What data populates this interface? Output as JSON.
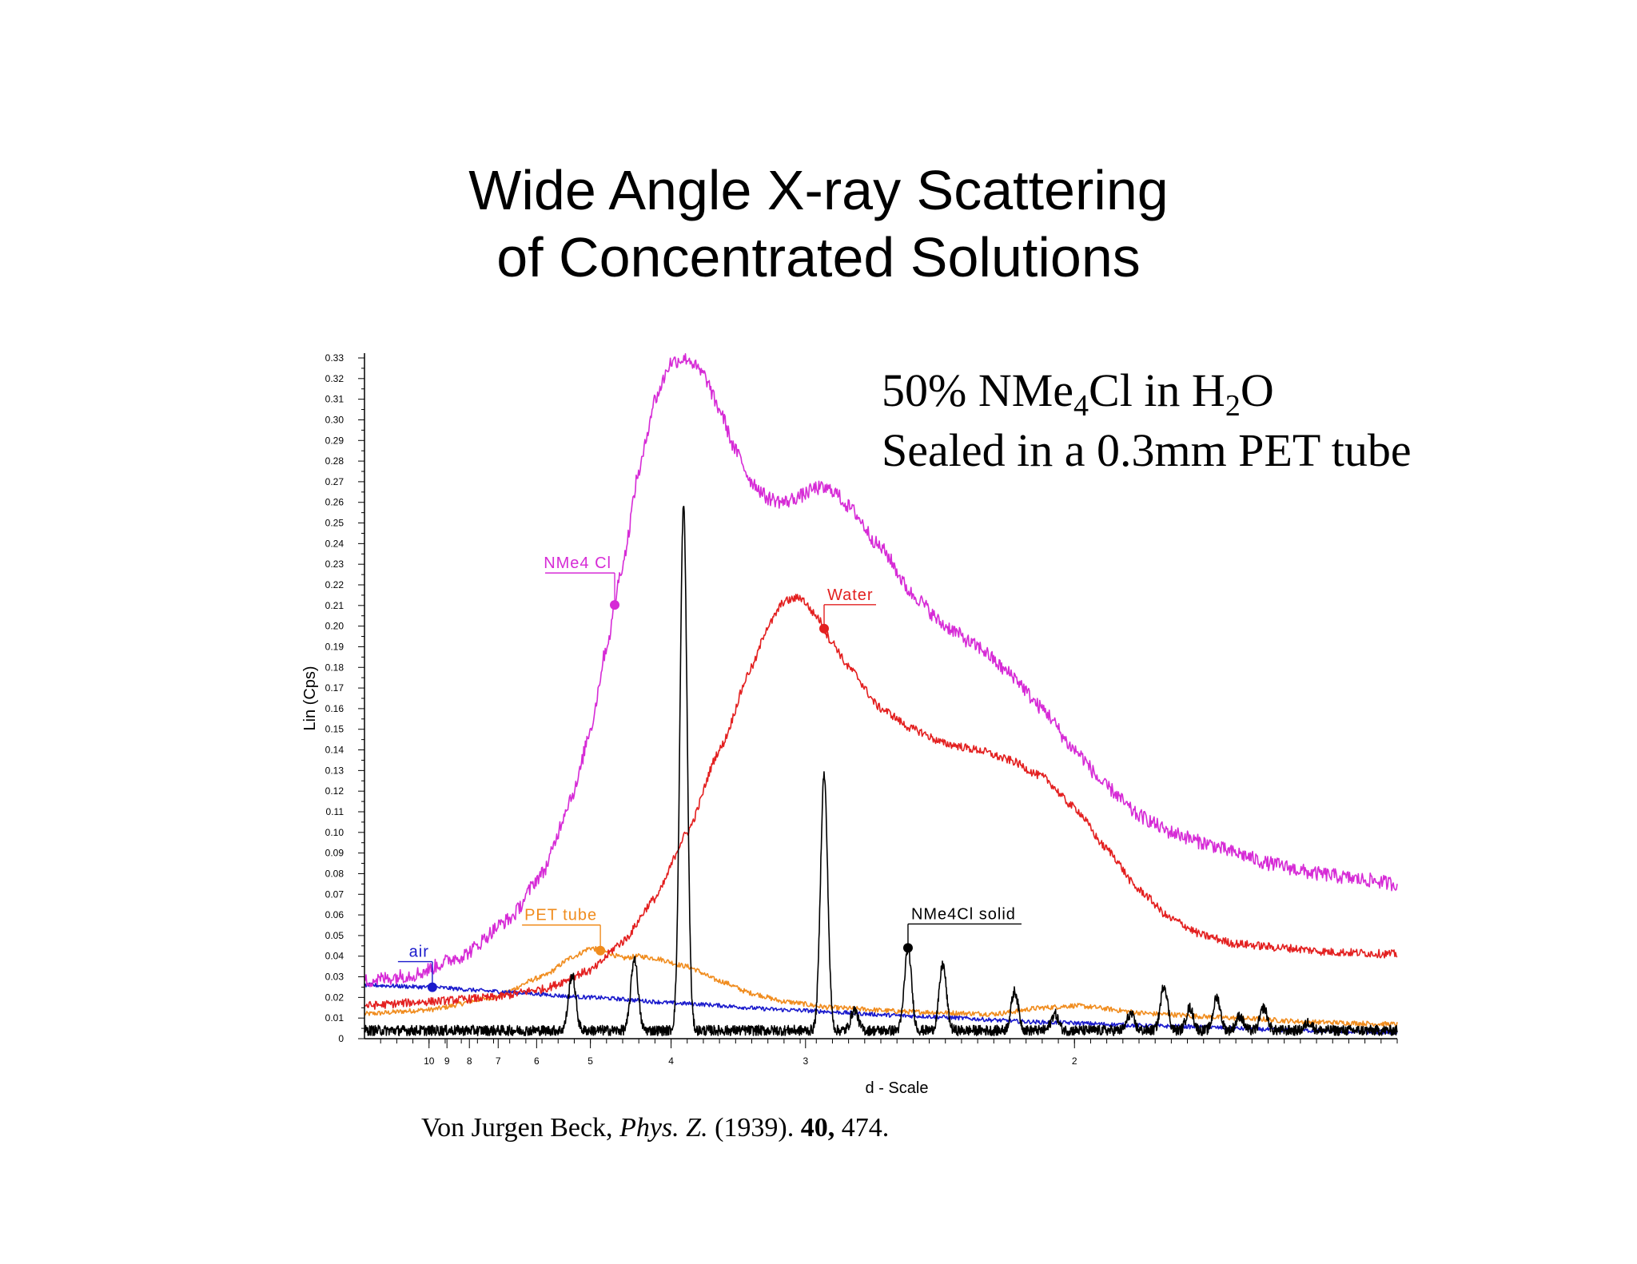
{
  "slide": {
    "title_line1": "Wide Angle X-ray Scattering",
    "title_line2": "of Concentrated Solutions",
    "annotation": {
      "line1_prefix": "50% NMe",
      "line1_sub1": "4",
      "line1_mid": "Cl in H",
      "line1_sub2": "2",
      "line1_suffix": "O",
      "line2": "Sealed in a 0.3mm PET tube"
    },
    "citation": {
      "author": "Von Jurgen Beck, ",
      "journal": "Phys. Z.",
      "year": " (1939). ",
      "volume": "40,",
      "pages": " 474."
    }
  },
  "colors": {
    "nme4cl": "#d62bd6",
    "water": "#e32020",
    "pet": "#f08c1e",
    "air": "#1a1acc",
    "solid": "#000000"
  },
  "chart_data": {
    "type": "line",
    "xlabel": "d - Scale",
    "ylabel": "Lin (Cps)",
    "ylim": [
      0,
      0.33
    ],
    "y_ticks": [
      "0",
      "0.01",
      "0.02",
      "0.03",
      "0.04",
      "0.05",
      "0.06",
      "0.07",
      "0.08",
      "0.09",
      "0.10",
      "0.11",
      "0.12",
      "0.13",
      "0.14",
      "0.15",
      "0.16",
      "0.17",
      "0.18",
      "0.19",
      "0.20",
      "0.21",
      "0.22",
      "0.23",
      "0.24",
      "0.25",
      "0.26",
      "0.27",
      "0.28",
      "0.29",
      "0.30",
      "0.31",
      "0.32",
      "0.33"
    ],
    "x_axis_note": "reciprocal d-spacing; plotted against 1/d in 1/Angstrom",
    "x_range_inv_d": [
      0.06,
      0.7
    ],
    "x_ticks": [
      {
        "label": "10",
        "d": 10
      },
      {
        "label": "9",
        "d": 9
      },
      {
        "label": "8",
        "d": 8
      },
      {
        "label": "7",
        "d": 7
      },
      {
        "label": "6",
        "d": 6
      },
      {
        "label": "5",
        "d": 5
      },
      {
        "label": "4",
        "d": 4
      },
      {
        "label": "3",
        "d": 3
      },
      {
        "label": "2",
        "d": 2
      }
    ],
    "series": [
      {
        "name": "NMe4 Cl",
        "label": "NMe4 Cl",
        "color_key": "nme4cl",
        "noise": 0.0035,
        "label_at_d": 4.65,
        "points": [
          [
            0.06,
            0.028
          ],
          [
            0.09,
            0.031
          ],
          [
            0.12,
            0.04
          ],
          [
            0.15,
            0.058
          ],
          [
            0.17,
            0.08
          ],
          [
            0.19,
            0.12
          ],
          [
            0.2,
            0.15
          ],
          [
            0.21,
            0.19
          ],
          [
            0.22,
            0.23
          ],
          [
            0.23,
            0.275
          ],
          [
            0.24,
            0.31
          ],
          [
            0.25,
            0.328
          ],
          [
            0.26,
            0.33
          ],
          [
            0.27,
            0.322
          ],
          [
            0.28,
            0.305
          ],
          [
            0.29,
            0.285
          ],
          [
            0.3,
            0.27
          ],
          [
            0.31,
            0.262
          ],
          [
            0.32,
            0.26
          ],
          [
            0.33,
            0.263
          ],
          [
            0.34,
            0.267
          ],
          [
            0.35,
            0.266
          ],
          [
            0.36,
            0.258
          ],
          [
            0.38,
            0.238
          ],
          [
            0.4,
            0.215
          ],
          [
            0.42,
            0.2
          ],
          [
            0.44,
            0.19
          ],
          [
            0.46,
            0.177
          ],
          [
            0.48,
            0.16
          ],
          [
            0.5,
            0.14
          ],
          [
            0.52,
            0.122
          ],
          [
            0.54,
            0.108
          ],
          [
            0.56,
            0.1
          ],
          [
            0.58,
            0.095
          ],
          [
            0.6,
            0.09
          ],
          [
            0.62,
            0.085
          ],
          [
            0.65,
            0.08
          ],
          [
            0.68,
            0.077
          ],
          [
            0.7,
            0.075
          ]
        ]
      },
      {
        "name": "Water",
        "label": "Water",
        "color_key": "water",
        "noise": 0.002,
        "label_at_d": 2.9,
        "points": [
          [
            0.06,
            0.016
          ],
          [
            0.1,
            0.018
          ],
          [
            0.14,
            0.02
          ],
          [
            0.17,
            0.024
          ],
          [
            0.2,
            0.033
          ],
          [
            0.22,
            0.047
          ],
          [
            0.24,
            0.068
          ],
          [
            0.26,
            0.1
          ],
          [
            0.28,
            0.14
          ],
          [
            0.3,
            0.18
          ],
          [
            0.31,
            0.2
          ],
          [
            0.32,
            0.212
          ],
          [
            0.33,
            0.214
          ],
          [
            0.34,
            0.205
          ],
          [
            0.35,
            0.192
          ],
          [
            0.36,
            0.18
          ],
          [
            0.38,
            0.16
          ],
          [
            0.4,
            0.15
          ],
          [
            0.42,
            0.143
          ],
          [
            0.44,
            0.14
          ],
          [
            0.46,
            0.135
          ],
          [
            0.48,
            0.127
          ],
          [
            0.5,
            0.112
          ],
          [
            0.52,
            0.092
          ],
          [
            0.54,
            0.072
          ],
          [
            0.56,
            0.058
          ],
          [
            0.58,
            0.05
          ],
          [
            0.6,
            0.046
          ],
          [
            0.63,
            0.044
          ],
          [
            0.66,
            0.042
          ],
          [
            0.7,
            0.041
          ]
        ]
      },
      {
        "name": "PET tube",
        "label": "PET tube",
        "color_key": "pet",
        "noise": 0.0012,
        "label_at_d": 4.85,
        "points": [
          [
            0.06,
            0.012
          ],
          [
            0.1,
            0.014
          ],
          [
            0.14,
            0.02
          ],
          [
            0.17,
            0.03
          ],
          [
            0.19,
            0.04
          ],
          [
            0.2,
            0.044
          ],
          [
            0.21,
            0.042
          ],
          [
            0.22,
            0.039
          ],
          [
            0.23,
            0.04
          ],
          [
            0.24,
            0.039
          ],
          [
            0.26,
            0.035
          ],
          [
            0.28,
            0.028
          ],
          [
            0.3,
            0.022
          ],
          [
            0.32,
            0.018
          ],
          [
            0.35,
            0.015
          ],
          [
            0.4,
            0.013
          ],
          [
            0.45,
            0.012
          ],
          [
            0.48,
            0.015
          ],
          [
            0.5,
            0.016
          ],
          [
            0.55,
            0.012
          ],
          [
            0.6,
            0.01
          ],
          [
            0.65,
            0.008
          ],
          [
            0.7,
            0.007
          ]
        ]
      },
      {
        "name": "air",
        "label": "air",
        "color_key": "air",
        "noise": 0.001,
        "label_at_d": 9.8,
        "points": [
          [
            0.06,
            0.026
          ],
          [
            0.1,
            0.025
          ],
          [
            0.14,
            0.023
          ],
          [
            0.2,
            0.02
          ],
          [
            0.26,
            0.017
          ],
          [
            0.32,
            0.014
          ],
          [
            0.4,
            0.011
          ],
          [
            0.48,
            0.008
          ],
          [
            0.56,
            0.006
          ],
          [
            0.64,
            0.004
          ],
          [
            0.7,
            0.003
          ]
        ]
      },
      {
        "name": "NMe4Cl solid",
        "label": "NMe4Cl solid",
        "color_key": "solid",
        "noise": 0.0025,
        "label_at_d": 2.52,
        "baseline": 0.004,
        "peaks": [
          {
            "d": 5.3,
            "h": 0.027
          },
          {
            "d": 4.4,
            "h": 0.035
          },
          {
            "d": 3.88,
            "h": 0.254
          },
          {
            "d": 2.9,
            "h": 0.124
          },
          {
            "d": 2.75,
            "h": 0.01
          },
          {
            "d": 2.52,
            "h": 0.04
          },
          {
            "d": 2.39,
            "h": 0.032
          },
          {
            "d": 2.16,
            "h": 0.019
          },
          {
            "d": 2.05,
            "h": 0.008
          },
          {
            "d": 1.87,
            "h": 0.008
          },
          {
            "d": 1.8,
            "h": 0.022
          },
          {
            "d": 1.75,
            "h": 0.011
          },
          {
            "d": 1.7,
            "h": 0.016
          },
          {
            "d": 1.66,
            "h": 0.007
          },
          {
            "d": 1.62,
            "h": 0.011
          },
          {
            "d": 1.55,
            "h": 0.004
          }
        ]
      }
    ]
  }
}
